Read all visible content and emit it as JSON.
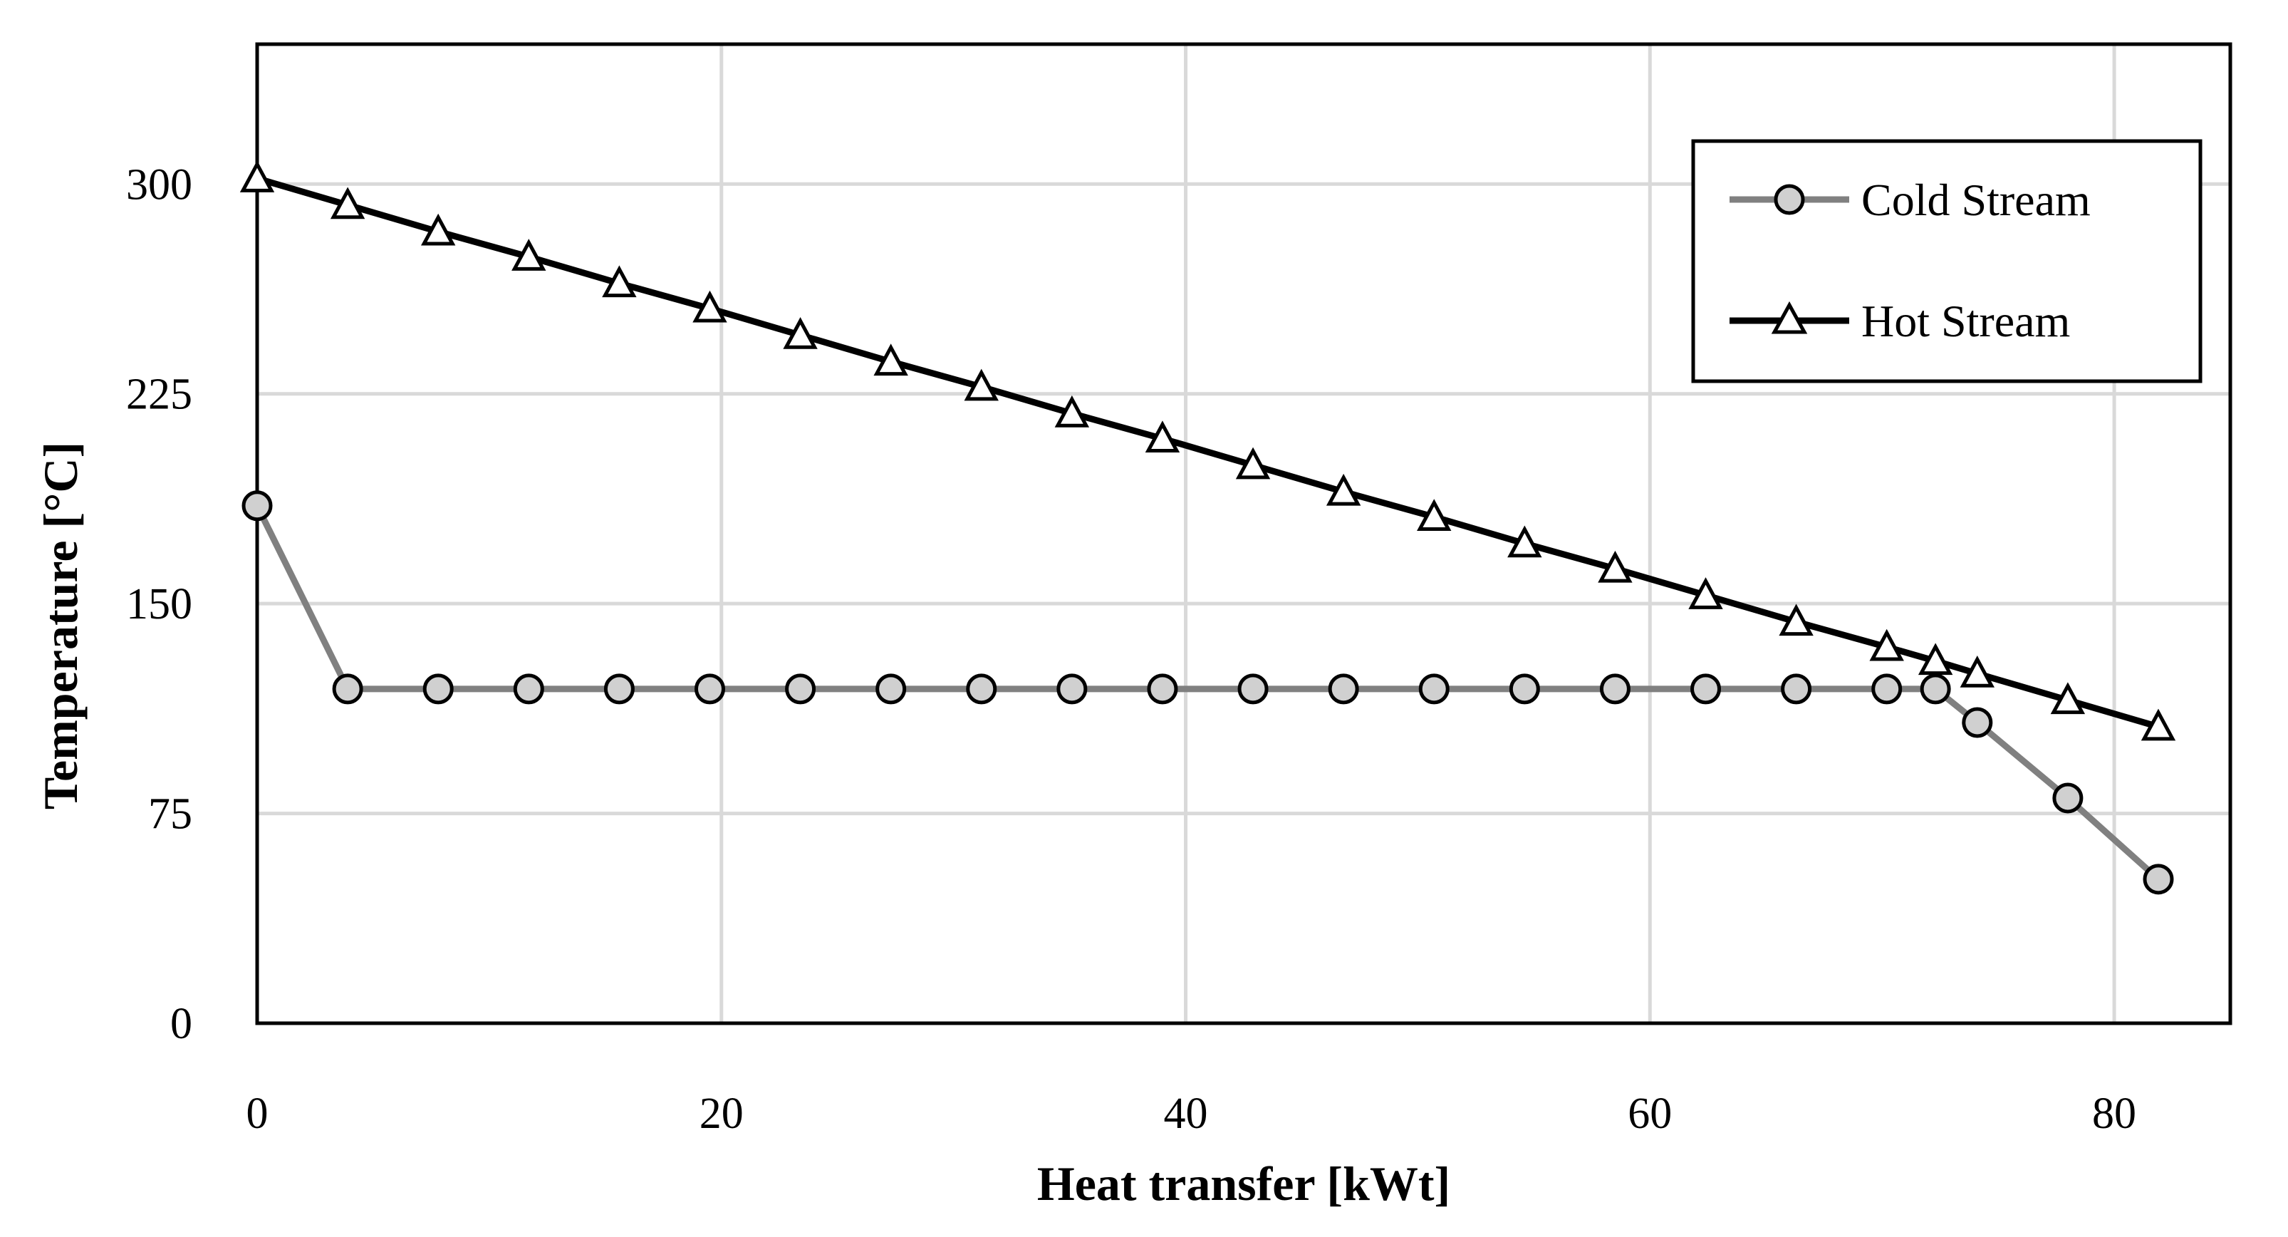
{
  "chart_data": {
    "type": "line",
    "xlabel": "Heat transfer [kWt]",
    "ylabel": "Temperature [°C]",
    "xlim": [
      0,
      85
    ],
    "ylim": [
      0,
      350
    ],
    "xticks": [
      0,
      20,
      40,
      60,
      80
    ],
    "yticks": [
      0,
      75,
      150,
      225,
      300
    ],
    "grid": true,
    "legend_position": "top-right",
    "series": [
      {
        "name": "Cold Stream",
        "color": "#808080",
        "marker": "circle",
        "marker_fill": "#d0d0d0",
        "points": [
          [
            0,
            185
          ],
          [
            3.9,
            119.5
          ],
          [
            7.8,
            119.5
          ],
          [
            11.7,
            119.5
          ],
          [
            15.6,
            119.5
          ],
          [
            19.5,
            119.5
          ],
          [
            23.4,
            119.5
          ],
          [
            27.3,
            119.5
          ],
          [
            31.2,
            119.5
          ],
          [
            35.1,
            119.5
          ],
          [
            39.0,
            119.5
          ],
          [
            42.9,
            119.5
          ],
          [
            46.8,
            119.5
          ],
          [
            50.7,
            119.5
          ],
          [
            54.6,
            119.5
          ],
          [
            58.5,
            119.5
          ],
          [
            62.4,
            119.5
          ],
          [
            66.3,
            119.5
          ],
          [
            70.2,
            119.5
          ],
          [
            72.3,
            119.5
          ],
          [
            74.1,
            107.5
          ],
          [
            78.0,
            80.5
          ],
          [
            81.9,
            51.5
          ]
        ]
      },
      {
        "name": "Hot Stream",
        "color": "#000000",
        "marker": "triangle",
        "marker_fill": "#ffffff",
        "points": [
          [
            0,
            302
          ],
          [
            3.9,
            292.5
          ],
          [
            7.8,
            283
          ],
          [
            11.7,
            274
          ],
          [
            15.6,
            264.5
          ],
          [
            19.5,
            255.5
          ],
          [
            23.4,
            246
          ],
          [
            27.3,
            236.5
          ],
          [
            31.2,
            227.5
          ],
          [
            35.1,
            218
          ],
          [
            39.0,
            209
          ],
          [
            42.9,
            199.5
          ],
          [
            46.8,
            190
          ],
          [
            50.7,
            181
          ],
          [
            54.6,
            171.5
          ],
          [
            58.5,
            162.5
          ],
          [
            62.4,
            153
          ],
          [
            66.3,
            143.5
          ],
          [
            70.2,
            134.5
          ],
          [
            72.3,
            129.5
          ],
          [
            74.1,
            125
          ],
          [
            78.0,
            115.5
          ],
          [
            81.9,
            106
          ]
        ]
      }
    ]
  }
}
